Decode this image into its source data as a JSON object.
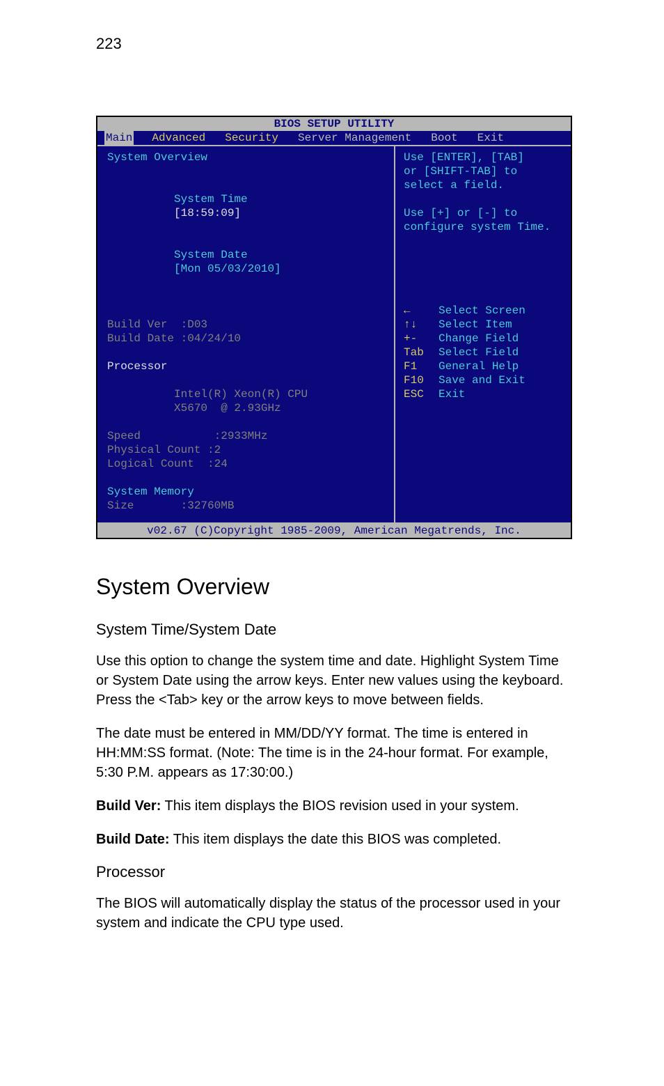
{
  "page_number": "223",
  "bios": {
    "title": "BIOS SETUP UTILITY",
    "tabs": {
      "main": "Main",
      "advanced": "Advanced",
      "security": "Security",
      "server_mgmt": "Server Management",
      "boot": "Boot",
      "exit": "Exit"
    },
    "left": {
      "overview_heading": "System Overview",
      "sys_time_label": "System Time",
      "sys_time_value": "[18:59:09]",
      "sys_date_label": "System Date",
      "sys_date_value": "[Mon 05/03/2010]",
      "build_ver": "Build Ver  :D03",
      "build_date": "Build Date :04/24/10",
      "proc_heading": "Processor",
      "proc_name_l": "Intel(R) Xeon(R) CPU",
      "proc_name_r": "X5670  @ 2.93GHz",
      "speed": "Speed           :2933MHz",
      "phys_count": "Physical Count :2",
      "log_count": "Logical Count  :24",
      "mem_heading": "System Memory",
      "mem_size": "Size       :32760MB"
    },
    "right": {
      "help1": "Use [ENTER], [TAB]",
      "help2": "or [SHIFT-TAB] to",
      "help3": "select a field.",
      "help4": "Use [+] or [-] to",
      "help5": "configure system Time.",
      "keys": {
        "k1": "←",
        "v1": "Select Screen",
        "k2": "↑↓",
        "v2": "Select Item",
        "k3": "+-",
        "v3": "Change Field",
        "k4": "Tab",
        "v4": "Select Field",
        "k5": "F1",
        "v5": "General Help",
        "k6": "F10",
        "v6": "Save and Exit",
        "k7": "ESC",
        "v7": "Exit"
      }
    },
    "footer": "v02.67 (C)Copyright 1985-2009, American Megatrends, Inc."
  },
  "doc": {
    "h1": "System Overview",
    "h2a": "System Time/System Date",
    "p1": "Use this option to change the system time and date. Highlight System Time or System Date using the arrow keys. Enter new values using the keyboard. Press the <Tab> key or the arrow keys to move between fields.",
    "p2": "The date must be entered in MM/DD/YY format. The time is entered in HH:MM:SS format. (Note: The time is in the 24-hour format. For example, 5:30 P.M. appears as 17:30:00.)",
    "p3_bold": "Build Ver:",
    "p3_rest": " This item displays the BIOS revision used in your system.",
    "p4_bold": "Build Date:",
    "p4_rest": " This item displays the date this BIOS was completed.",
    "h2b": "Processor",
    "p5": "The BIOS will automatically display the status of the processor used in your system and indicate the CPU type used."
  }
}
